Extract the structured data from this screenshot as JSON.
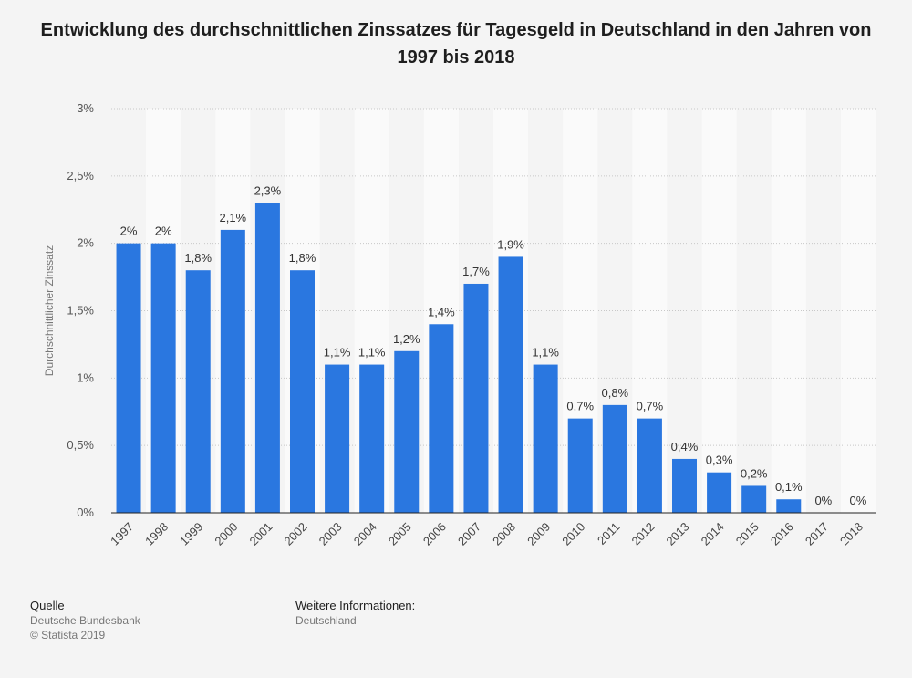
{
  "chart_data": {
    "type": "bar",
    "title": "Entwicklung des durchschnittlichen Zinssatzes für Tagesgeld in Deutschland in den Jahren von 1997 bis 2018",
    "xlabel": "",
    "ylabel": "Durchschnittlicher Zinssatz",
    "ylim": [
      0,
      3
    ],
    "yticks": [
      0,
      0.5,
      1,
      1.5,
      2,
      2.5,
      3
    ],
    "ytick_labels": [
      "0%",
      "0,5%",
      "1%",
      "1,5%",
      "2%",
      "2,5%",
      "3%"
    ],
    "categories": [
      "1997",
      "1998",
      "1999",
      "2000",
      "2001",
      "2002",
      "2003",
      "2004",
      "2005",
      "2006",
      "2007",
      "2008",
      "2009",
      "2010",
      "2011",
      "2012",
      "2013",
      "2014",
      "2015",
      "2016",
      "2017",
      "2018"
    ],
    "values": [
      2,
      2,
      1.8,
      2.1,
      2.3,
      1.8,
      1.1,
      1.1,
      1.2,
      1.4,
      1.7,
      1.9,
      1.1,
      0.7,
      0.8,
      0.7,
      0.4,
      0.3,
      0.2,
      0.1,
      0,
      0
    ],
    "value_labels": [
      "2%",
      "2%",
      "1,8%",
      "2,1%",
      "2,3%",
      "1,8%",
      "1,1%",
      "1,1%",
      "1,2%",
      "1,4%",
      "1,7%",
      "1,9%",
      "1,1%",
      "0,7%",
      "0,8%",
      "0,7%",
      "0,4%",
      "0,3%",
      "0,2%",
      "0,1%",
      "0%",
      "0%"
    ],
    "bar_color": "#2a77e0",
    "grid": true
  },
  "footer": {
    "source_heading": "Quelle",
    "source_name": "Deutsche Bundesbank",
    "copyright": "© Statista 2019",
    "info_heading": "Weitere Informationen:",
    "info_value": "Deutschland"
  }
}
